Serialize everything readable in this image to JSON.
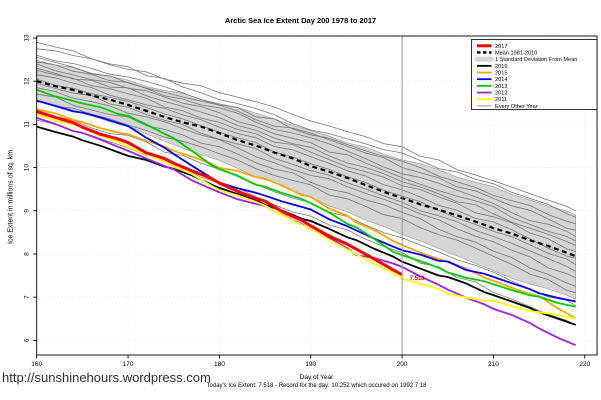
{
  "page": {
    "url_text": "http://sunshinehours.wordpress.com"
  },
  "chart_data": {
    "type": "line",
    "title": "Arctic Sea Ice Extent Day 200 1978 to 2017",
    "xlabel": "Day of Year",
    "ylabel": "Ice Extent in millions of sq. km.",
    "subtitle": "Today's Ice Extent: 7.518  - Record for the day: 10.252 which occured on 1992 7 18",
    "xlim": [
      160,
      221
    ],
    "ylim": [
      5.6,
      13.05
    ],
    "x_ticks": [
      160,
      170,
      180,
      190,
      200,
      210,
      220
    ],
    "y_ticks": [
      6,
      7,
      8,
      9,
      10,
      11,
      12,
      13
    ],
    "grid": true,
    "legend_position": "top-right",
    "today_line_x": 200,
    "annotation": {
      "text": "7.518",
      "x": 200.6,
      "y": 7.45,
      "color": "#ff0000"
    },
    "colors": {
      "grid": "#efecec",
      "today_line": "#9a9a9a",
      "band_fill": "#d5d5d5",
      "band_edge": "#a0a0a0",
      "background_line": "#787878",
      "axis": "#000000"
    },
    "mean": {
      "label": "Mean 1981-2010",
      "color": "#000000",
      "days": [
        160,
        170,
        180,
        190,
        200,
        210,
        219
      ],
      "values": [
        12.0,
        11.45,
        10.8,
        10.05,
        9.3,
        8.6,
        7.95
      ]
    },
    "band": {
      "label": "1 Standard Deviation From Mean",
      "days": [
        160,
        170,
        180,
        190,
        200,
        210,
        219
      ],
      "upper": [
        12.5,
        12.0,
        11.5,
        10.85,
        10.2,
        9.55,
        8.9
      ],
      "lower": [
        11.55,
        10.95,
        10.15,
        9.3,
        8.45,
        7.6,
        6.95
      ]
    },
    "series": [
      {
        "name": "2016",
        "color": "#000000",
        "width": 1.8,
        "days": [
          160,
          165,
          170,
          175,
          180,
          185,
          190,
          195,
          200,
          205,
          210,
          215,
          219
        ],
        "values": [
          10.95,
          10.65,
          10.3,
          9.95,
          9.55,
          9.15,
          8.75,
          8.3,
          7.85,
          7.45,
          7.05,
          6.65,
          6.36
        ]
      },
      {
        "name": "2015",
        "color": "#ffa500",
        "width": 1.8,
        "days": [
          160,
          165,
          170,
          175,
          180,
          185,
          190,
          195,
          200,
          205,
          210,
          215,
          219
        ],
        "values": [
          11.35,
          11.05,
          10.75,
          10.4,
          10.0,
          9.75,
          9.3,
          8.75,
          8.2,
          7.8,
          7.4,
          7.0,
          6.51
        ]
      },
      {
        "name": "2014",
        "color": "#0000ff",
        "width": 1.8,
        "days": [
          160,
          165,
          170,
          175,
          180,
          185,
          190,
          195,
          200,
          205,
          210,
          215,
          219
        ],
        "values": [
          11.55,
          11.25,
          10.95,
          10.3,
          9.65,
          9.35,
          9.0,
          8.55,
          8.1,
          7.8,
          7.45,
          7.1,
          6.9
        ]
      },
      {
        "name": "2013",
        "color": "#00cd00",
        "width": 1.8,
        "days": [
          160,
          165,
          170,
          175,
          180,
          185,
          190,
          195,
          200,
          205,
          210,
          215,
          219
        ],
        "values": [
          11.8,
          11.5,
          11.2,
          10.7,
          9.95,
          9.55,
          9.2,
          8.6,
          7.95,
          7.6,
          7.3,
          7.0,
          6.78
        ]
      },
      {
        "name": "2012",
        "color": "#a020f0",
        "width": 1.8,
        "days": [
          160,
          165,
          170,
          175,
          180,
          185,
          190,
          195,
          200,
          205,
          210,
          215,
          219
        ],
        "values": [
          11.15,
          10.8,
          10.4,
          9.95,
          9.4,
          9.1,
          8.6,
          8.0,
          7.7,
          7.2,
          6.75,
          6.3,
          5.89
        ]
      },
      {
        "name": "2011",
        "color": "#ffff00",
        "width": 1.8,
        "days": [
          160,
          165,
          170,
          175,
          180,
          185,
          190,
          195,
          200,
          205,
          210,
          215,
          219
        ],
        "values": [
          11.25,
          10.9,
          10.5,
          10.05,
          9.5,
          9.1,
          8.6,
          8.0,
          7.45,
          7.1,
          6.9,
          6.65,
          6.5
        ]
      },
      {
        "name": "2017",
        "color": "#ff0000",
        "width": 3,
        "days": [
          160,
          165,
          170,
          175,
          180,
          185,
          190,
          195,
          200
        ],
        "values": [
          11.3,
          10.95,
          10.55,
          10.1,
          9.65,
          9.2,
          8.65,
          8.1,
          7.52
        ]
      }
    ],
    "background_series": {
      "label": "Every Other Year",
      "days": [
        160,
        170,
        180,
        190,
        200,
        210,
        219
      ],
      "lines": [
        [
          12.9,
          12.3,
          11.75,
          11.1,
          10.45,
          9.7,
          9.0
        ],
        [
          12.75,
          12.3,
          11.6,
          10.9,
          10.3,
          9.6,
          8.85
        ],
        [
          12.6,
          12.1,
          11.5,
          10.8,
          10.1,
          9.4,
          8.7
        ],
        [
          12.55,
          12.0,
          11.4,
          10.75,
          10.05,
          9.3,
          8.55
        ],
        [
          12.45,
          11.95,
          11.35,
          10.65,
          9.9,
          9.15,
          8.4
        ],
        [
          12.4,
          11.85,
          11.25,
          10.55,
          9.8,
          9.05,
          8.3
        ],
        [
          12.3,
          11.8,
          11.15,
          10.45,
          9.7,
          8.95,
          8.2
        ],
        [
          12.25,
          11.7,
          11.05,
          10.35,
          9.6,
          8.85,
          8.05
        ],
        [
          12.15,
          11.6,
          10.95,
          10.25,
          9.5,
          8.7,
          7.9
        ],
        [
          12.05,
          11.5,
          10.85,
          10.1,
          9.35,
          8.55,
          7.75
        ],
        [
          11.95,
          11.4,
          10.7,
          9.95,
          9.2,
          8.4,
          7.6
        ],
        [
          11.85,
          11.3,
          10.6,
          9.85,
          9.1,
          8.25,
          7.45
        ],
        [
          11.7,
          11.15,
          10.45,
          9.7,
          8.95,
          8.1,
          7.25
        ],
        [
          11.55,
          11.0,
          10.3,
          9.55,
          8.8,
          7.95,
          7.1
        ],
        [
          11.3,
          10.7,
          9.95,
          9.15,
          8.35,
          7.55,
          6.8
        ],
        [
          11.1,
          10.45,
          9.65,
          8.85,
          8.0,
          7.15,
          6.35
        ]
      ]
    },
    "legend": [
      {
        "label": "2017",
        "color": "#ff0000",
        "style": "thick"
      },
      {
        "label": "Mean 1981-2010",
        "color": "#000000",
        "style": "dashed"
      },
      {
        "label": "1 Standard Deviation From Mean",
        "color": "#d5d5d5",
        "style": "band"
      },
      {
        "label": "2016",
        "color": "#000000",
        "style": "line"
      },
      {
        "label": "2015",
        "color": "#ffa500",
        "style": "line"
      },
      {
        "label": "2014",
        "color": "#0000ff",
        "style": "line"
      },
      {
        "label": "2013",
        "color": "#00cd00",
        "style": "line"
      },
      {
        "label": "2012",
        "color": "#a020f0",
        "style": "line"
      },
      {
        "label": "2011",
        "color": "#ffff00",
        "style": "line"
      },
      {
        "label": "Every Other Year",
        "color": "#808080",
        "style": "thin"
      }
    ]
  }
}
